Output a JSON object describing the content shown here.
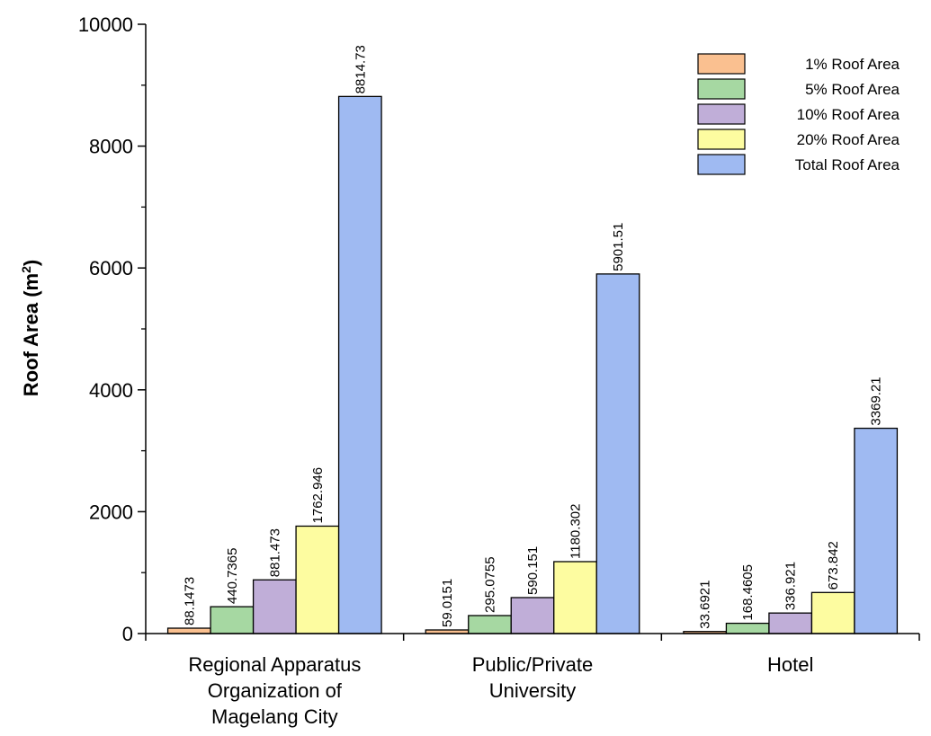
{
  "chart_data": {
    "type": "bar",
    "ylabel": "Roof Area (m",
    "ylabel_sup": "2",
    "ylabel_close": ")",
    "xlabel": "",
    "ylim": [
      0,
      10000
    ],
    "y_ticks": [
      "0",
      "2000",
      "4000",
      "6000",
      "8000",
      "10000"
    ],
    "grid": false,
    "legend_position": "top-right",
    "categories": [
      [
        "Regional Apparatus",
        "Organization of",
        "Magelang City"
      ],
      [
        "Public/Private",
        "University"
      ],
      [
        "Hotel"
      ]
    ],
    "series": [
      {
        "name": "1% Roof Area",
        "color": "#fac090",
        "values": [
          88.1473,
          59.0151,
          33.6921
        ],
        "labels": [
          "88.1473",
          "59.0151",
          "33.6921"
        ]
      },
      {
        "name": "5% Roof Area",
        "color": "#a6d8a2",
        "values": [
          440.7365,
          295.0755,
          168.4605
        ],
        "labels": [
          "440.7365",
          "295.0755",
          "168.4605"
        ]
      },
      {
        "name": "10% Roof Area",
        "color": "#c0aed8",
        "values": [
          881.473,
          590.151,
          336.921
        ],
        "labels": [
          "881.473",
          "590.151",
          "336.921"
        ]
      },
      {
        "name": "20% Roof Area",
        "color": "#fdfca0",
        "values": [
          1762.946,
          1180.302,
          673.842
        ],
        "labels": [
          "1762.946",
          "1180.302",
          "673.842"
        ]
      },
      {
        "name": "Total Roof Area",
        "color": "#9fbaf2",
        "values": [
          8814.73,
          5901.51,
          3369.21
        ],
        "labels": [
          "8814.73",
          "5901.51",
          "3369.21"
        ]
      }
    ]
  }
}
